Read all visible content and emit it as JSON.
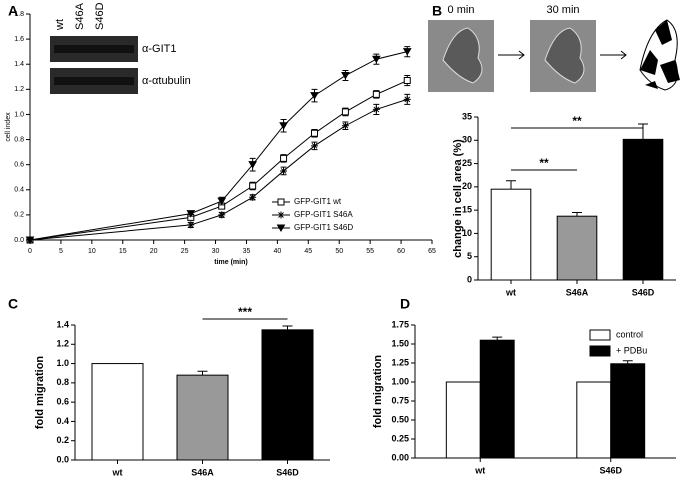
{
  "chart_data": [
    {
      "type": "line",
      "panel": "A",
      "x_label": "time (min)",
      "y_label": "cell index",
      "x": [
        0,
        26,
        31,
        36,
        41,
        46,
        51,
        56,
        61
      ],
      "series": [
        {
          "name": "GFP-GIT1 wt",
          "color": "#000000",
          "marker": "square",
          "values": [
            0,
            0.18,
            0.27,
            0.43,
            0.65,
            0.85,
            1.02,
            1.16,
            1.27
          ],
          "errors": [
            0,
            0.02,
            0.02,
            0.03,
            0.03,
            0.03,
            0.03,
            0.03,
            0.04
          ]
        },
        {
          "name": "GFP-GIT1 S46A",
          "color": "#000000",
          "marker": "star",
          "values": [
            0,
            0.12,
            0.2,
            0.34,
            0.55,
            0.75,
            0.91,
            1.04,
            1.12
          ],
          "errors": [
            0,
            0.02,
            0.02,
            0.02,
            0.03,
            0.03,
            0.03,
            0.04,
            0.04
          ]
        },
        {
          "name": "GFP-GIT1 S46D",
          "color": "#000000",
          "marker": "triangle",
          "values": [
            0,
            0.21,
            0.31,
            0.6,
            0.91,
            1.15,
            1.31,
            1.44,
            1.5
          ],
          "errors": [
            0,
            0.02,
            0.03,
            0.05,
            0.05,
            0.05,
            0.04,
            0.04,
            0.04
          ]
        }
      ],
      "xlim": [
        0,
        65
      ],
      "xticks": [
        0,
        5,
        10,
        15,
        20,
        25,
        30,
        35,
        40,
        45,
        50,
        55,
        60,
        65
      ],
      "ylim": [
        0,
        1.8
      ],
      "yticks": [
        {
          "value": 0,
          "label": "0.0"
        },
        0.2,
        0.4,
        0.6,
        0.8,
        {
          "value": 1,
          "label": "1.0"
        },
        1.2,
        1.4,
        1.6,
        1.8
      ],
      "legend": "lower right",
      "blot": {
        "lanes": [
          "wt",
          "S46A",
          "S46D"
        ],
        "rows": [
          "α-GIT1",
          "α-αtubulin"
        ]
      }
    },
    {
      "type": "bar",
      "panel": "B",
      "y_label": "change in cell area (%)",
      "categories": [
        "wt",
        "S46A",
        "S46D"
      ],
      "values": [
        19.5,
        13.7,
        30.2
      ],
      "errors": [
        1.8,
        0.8,
        3.3
      ],
      "colors": [
        "#ffffff",
        "#999999",
        "#000000"
      ],
      "ylim": [
        0,
        35
      ],
      "yticks": [
        0,
        5,
        10,
        15,
        20,
        25,
        30,
        35
      ],
      "annotations": [
        "**",
        "**"
      ],
      "images": [
        "0 min",
        "30 min"
      ]
    },
    {
      "type": "bar",
      "panel": "C",
      "y_label": "fold migration",
      "categories": [
        "wt",
        "S46A",
        "S46D"
      ],
      "values": [
        1,
        0.88,
        1.35
      ],
      "errors": [
        0,
        0.04,
        0.04
      ],
      "colors": [
        "#ffffff",
        "#999999",
        "#000000"
      ],
      "ylim": [
        0,
        1.4
      ],
      "yticks": [
        {
          "value": 0,
          "label": "0.0"
        },
        0.2,
        0.4,
        0.6,
        0.8,
        {
          "value": 1,
          "label": "1.0"
        },
        1.2,
        1.4
      ],
      "annotations": [
        "***"
      ]
    },
    {
      "type": "grouped-bar",
      "panel": "D",
      "y_label": "fold migration",
      "categories": [
        "wt",
        "S46D"
      ],
      "series": [
        {
          "name": "control",
          "color": "#ffffff",
          "values": [
            1,
            1
          ],
          "errors": [
            0,
            0
          ]
        },
        {
          "name": "+ PDBu",
          "color": "#000000",
          "values": [
            1.55,
            1.24
          ],
          "errors": [
            0.04,
            0.04
          ]
        }
      ],
      "ylim": [
        0,
        1.75
      ],
      "yticks": [
        {
          "value": 0,
          "label": "0.00"
        },
        {
          "value": 0.25,
          "label": "0.25"
        },
        {
          "value": 0.5,
          "label": "0.50"
        },
        {
          "value": 0.75,
          "label": "0.75"
        },
        {
          "value": 1,
          "label": "1.00"
        },
        {
          "value": 1.25,
          "label": "1.25"
        },
        {
          "value": 1.5,
          "label": "1.50"
        },
        {
          "value": 1.75,
          "label": "1.75"
        }
      ],
      "legend": "upper right"
    }
  ]
}
